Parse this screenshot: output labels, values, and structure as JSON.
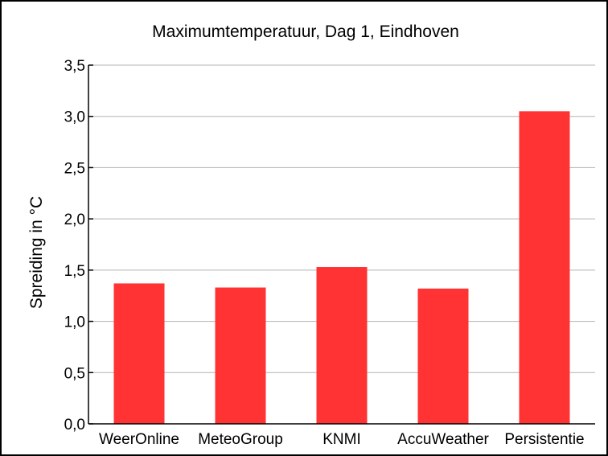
{
  "chart_data": {
    "type": "bar",
    "title": "Maximumtemperatuur, Dag 1, Eindhoven",
    "xlabel": "",
    "ylabel": "Spreiding in °C",
    "categories": [
      "WeerOnline",
      "MeteoGroup",
      "KNMI",
      "AccuWeather",
      "Persistentie"
    ],
    "values": [
      1.37,
      1.33,
      1.53,
      1.32,
      3.05
    ],
    "ylim": [
      0,
      3.5
    ],
    "yticks": [
      "0,0",
      "0,5",
      "1,0",
      "1,5",
      "2,0",
      "2,5",
      "3,0",
      "3,5"
    ],
    "grid": true,
    "legend": "none",
    "bar_color": "#ff3333",
    "grid_color": "#b3b3b3",
    "axis_color": "#000000"
  }
}
